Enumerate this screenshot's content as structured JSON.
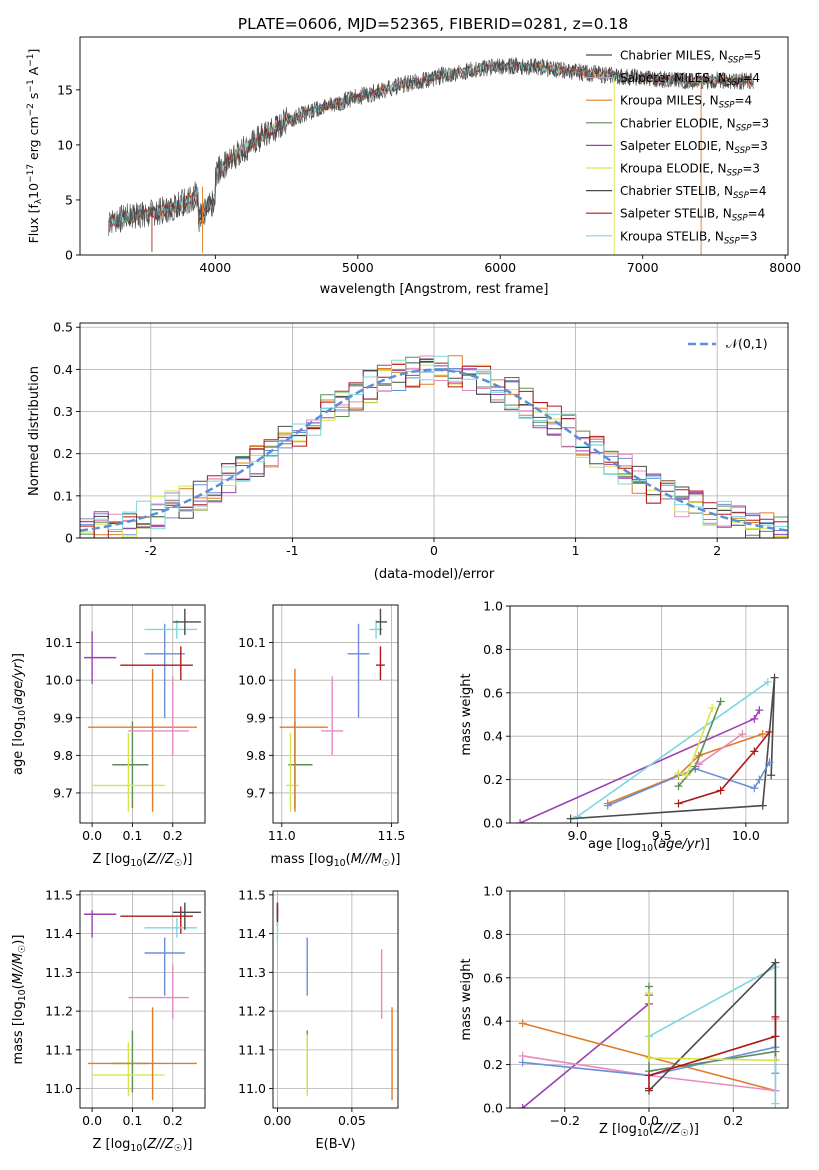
{
  "title": "PLATE=0606, MJD=52365, FIBERID=0281, z=0.18",
  "colors": {
    "blue": "#6a8fd8",
    "orange": "#e07b28",
    "green": "#5d8c56",
    "pink": "#e88ac0",
    "purple": "#9b3fb5",
    "yellow": "#d6e64a",
    "gray": "#4a4a4a",
    "red": "#b01818",
    "cyan": "#7ed6de"
  },
  "chart_data": [
    {
      "id": "spectrum",
      "type": "line",
      "xlabel": "wavelength [Angstrom, rest frame]",
      "ylabel": "Flux [f_λ10^-17 erg cm^-2 s^-1 A^-1]",
      "xlim": [
        3050,
        8020
      ],
      "ylim": [
        0,
        19.8
      ],
      "xticks": [
        4000,
        5000,
        6000,
        7000,
        8000
      ],
      "yticks": [
        0,
        5,
        10,
        15
      ],
      "legend": "top-right",
      "continuum": {
        "x": [
          3250,
          3400,
          3550,
          3700,
          3850,
          3950,
          4050,
          4150,
          4300,
          4500,
          4700,
          4900,
          5100,
          5300,
          5500,
          5700,
          5900,
          6100,
          6300,
          6500,
          6700,
          6900,
          7100,
          7300,
          7500,
          7700,
          7780
        ],
        "y": [
          3.0,
          3.5,
          3.8,
          4.3,
          5.3,
          6.8,
          8.0,
          9.2,
          10.5,
          12.2,
          13.2,
          14.0,
          14.7,
          15.4,
          16.0,
          16.6,
          17.0,
          17.2,
          17.0,
          16.7,
          16.4,
          16.2,
          16.0,
          15.8,
          15.9,
          15.8,
          15.8
        ]
      },
      "series": [
        {
          "name": "Chabrier MILES, N_SSP=5",
          "color": "gray"
        },
        {
          "name": "Salpeter MILES, N_SSP=4",
          "color": "pink"
        },
        {
          "name": "Kroupa MILES, N_SSP=4",
          "color": "orange"
        },
        {
          "name": "Chabrier ELODIE, N_SSP=3",
          "color": "green"
        },
        {
          "name": "Salpeter ELODIE, N_SSP=3",
          "color": "purple"
        },
        {
          "name": "Kroupa ELODIE, N_SSP=3",
          "color": "yellow"
        },
        {
          "name": "Chabrier STELIB, N_SSP=4",
          "color": "gray"
        },
        {
          "name": "Salpeter STELIB, N_SSP=4",
          "color": "red"
        },
        {
          "name": "Kroupa STELIB, N_SSP=3",
          "color": "cyan"
        }
      ]
    },
    {
      "id": "residuals",
      "type": "line",
      "xlabel": "(data-model)/error",
      "ylabel": "Normed distribution",
      "xlim": [
        -2.5,
        2.5
      ],
      "ylim": [
        0,
        0.51
      ],
      "xticks": [
        -2,
        -1,
        0,
        1,
        2
      ],
      "yticks": [
        0.0,
        0.1,
        0.2,
        0.3,
        0.4,
        0.5
      ],
      "grid": true,
      "legend": "top-right",
      "legend_label": "𝒩(0,1)",
      "bin_width": 0.1
    },
    {
      "id": "z-age",
      "type": "scatter",
      "xlabel": "Z [log10(Z/Z☉)]",
      "ylabel": "age  [log10(age/yr)]",
      "xlim": [
        -0.03,
        0.28
      ],
      "ylim": [
        9.62,
        10.2
      ],
      "xticks": [
        0.0,
        0.1,
        0.2
      ],
      "xticklabels": [
        "0.0",
        "0.1",
        "0.2"
      ],
      "yticks": [
        9.7,
        9.8,
        9.9,
        10.0,
        10.1
      ],
      "yticklabels": [
        "9.7",
        "9.8",
        "9.9",
        "10.0",
        "10.1"
      ],
      "grid": true,
      "points": [
        {
          "x": 0.0,
          "xerr": 0.0,
          "y": 10.06,
          "yerr": 0.07,
          "color": "purple",
          "xl": -0.02,
          "xr": 0.06
        },
        {
          "x": 0.1,
          "y": 9.775,
          "color": "green",
          "xl": 0.05,
          "xr": 0.14,
          "yb": 9.66,
          "yt": 9.89
        },
        {
          "x": 0.09,
          "y": 9.72,
          "color": "yellow",
          "xl": 0.0,
          "xr": 0.18,
          "yb": 9.65,
          "yt": 9.86
        },
        {
          "x": 0.15,
          "y": 9.875,
          "color": "orange",
          "xl": -0.01,
          "xr": 0.26,
          "yb": 9.65,
          "yt": 10.03
        },
        {
          "x": 0.2,
          "y": 9.865,
          "color": "pink",
          "xl": 0.09,
          "xr": 0.24,
          "yb": 9.8,
          "yt": 10.01
        },
        {
          "x": 0.18,
          "y": 10.07,
          "color": "blue",
          "xl": 0.13,
          "xr": 0.23,
          "yb": 9.9,
          "yt": 10.15
        },
        {
          "x": 0.22,
          "y": 10.04,
          "color": "red",
          "xl": 0.07,
          "xr": 0.25,
          "yb": 10.0,
          "yt": 10.09
        },
        {
          "x": 0.21,
          "y": 10.135,
          "color": "cyan",
          "xl": 0.13,
          "xr": 0.26,
          "yb": 10.11,
          "yt": 10.16
        },
        {
          "x": 0.23,
          "y": 10.155,
          "color": "gray",
          "xl": 0.2,
          "xr": 0.27,
          "yb": 10.12,
          "yt": 10.19
        }
      ]
    },
    {
      "id": "mass-age",
      "type": "scatter",
      "xlabel": "mass [log10(M/M☉)]",
      "ylabel": "",
      "xlim": [
        10.96,
        11.53
      ],
      "ylim": [
        9.62,
        10.2
      ],
      "xticks": [
        11.0,
        11.5
      ],
      "xticklabels": [
        "11.0",
        "11.5"
      ],
      "yticks": [
        9.7,
        9.8,
        9.9,
        10.0,
        10.1
      ],
      "yticklabels": [
        "9.7",
        "9.8",
        "9.9",
        "10.0",
        "10.1"
      ],
      "grid": true,
      "points": [
        {
          "x": 11.06,
          "y": 9.775,
          "color": "green",
          "xl": 11.03,
          "xr": 11.14,
          "yb": 9.66,
          "yt": 9.89
        },
        {
          "x": 11.04,
          "y": 9.72,
          "color": "yellow",
          "xl": 11.02,
          "xr": 11.08,
          "yb": 9.65,
          "yt": 9.86
        },
        {
          "x": 11.06,
          "y": 9.875,
          "color": "orange",
          "xl": 10.99,
          "xr": 11.21,
          "yb": 9.65,
          "yt": 10.03
        },
        {
          "x": 11.23,
          "y": 9.865,
          "color": "pink",
          "xl": 11.18,
          "xr": 11.28,
          "yb": 9.8,
          "yt": 10.01
        },
        {
          "x": 11.35,
          "y": 10.07,
          "color": "blue",
          "xl": 11.3,
          "xr": 11.4,
          "yb": 9.9,
          "yt": 10.15
        },
        {
          "x": 11.45,
          "y": 10.04,
          "color": "red",
          "xl": 11.43,
          "xr": 11.47,
          "yb": 10.0,
          "yt": 10.09
        },
        {
          "x": 11.43,
          "y": 10.135,
          "color": "cyan",
          "xl": 11.4,
          "xr": 11.46,
          "yb": 10.11,
          "yt": 10.16
        },
        {
          "x": 11.45,
          "y": 10.155,
          "color": "gray",
          "xl": 11.43,
          "xr": 11.48,
          "yb": 10.12,
          "yt": 10.19
        }
      ]
    },
    {
      "id": "age-massweight",
      "type": "line",
      "xlabel": "age  [log10(age/yr)]",
      "ylabel": "mass weight",
      "xlim": [
        8.6,
        10.25
      ],
      "ylim": [
        0,
        1.0
      ],
      "xticks": [
        9.0,
        9.5,
        10.0
      ],
      "xticklabels": [
        "9.0",
        "9.5",
        "10.0"
      ],
      "yticks": [
        0.0,
        0.2,
        0.4,
        0.6,
        0.8,
        1.0
      ],
      "yticklabels": [
        "0.0",
        "0.2",
        "0.4",
        "0.6",
        "0.8",
        "1.0"
      ],
      "grid": true,
      "series": [
        {
          "color": "purple",
          "x": [
            8.66,
            10.05,
            10.08
          ],
          "y": [
            0.0,
            0.48,
            0.52
          ]
        },
        {
          "color": "cyan",
          "x": [
            9.0,
            10.13
          ],
          "y": [
            0.03,
            0.65
          ]
        },
        {
          "color": "gray",
          "x": [
            8.96,
            10.1,
            10.17,
            10.15
          ],
          "y": [
            0.02,
            0.08,
            0.67,
            0.22
          ]
        },
        {
          "color": "orange",
          "x": [
            9.18,
            9.6,
            9.72,
            10.1
          ],
          "y": [
            0.09,
            0.22,
            0.31,
            0.41
          ]
        },
        {
          "color": "blue",
          "x": [
            9.18,
            9.7,
            10.05,
            10.08,
            10.14
          ],
          "y": [
            0.08,
            0.25,
            0.16,
            0.2,
            0.28
          ]
        },
        {
          "color": "red",
          "x": [
            9.6,
            9.85,
            10.05,
            10.14
          ],
          "y": [
            0.09,
            0.15,
            0.33,
            0.42
          ]
        },
        {
          "color": "green",
          "x": [
            9.6,
            9.7,
            9.85
          ],
          "y": [
            0.17,
            0.26,
            0.56
          ]
        },
        {
          "color": "yellow",
          "x": [
            9.6,
            9.65,
            9.8
          ],
          "y": [
            0.23,
            0.22,
            0.53
          ]
        },
        {
          "color": "pink",
          "x": [
            9.72,
            9.98
          ],
          "y": [
            0.27,
            0.41
          ]
        }
      ]
    },
    {
      "id": "z-mass",
      "type": "scatter",
      "xlabel": "Z [log10(Z/Z☉)]",
      "ylabel": "mass [log10(M/M☉)]",
      "xlim": [
        -0.03,
        0.28
      ],
      "ylim": [
        10.95,
        11.51
      ],
      "xticks": [
        0.0,
        0.1,
        0.2
      ],
      "xticklabels": [
        "0.0",
        "0.1",
        "0.2"
      ],
      "yticks": [
        11.0,
        11.1,
        11.2,
        11.3,
        11.4,
        11.5
      ],
      "yticklabels": [
        "11.0",
        "11.1",
        "11.2",
        "11.3",
        "11.4",
        "11.5"
      ],
      "grid": true,
      "points": [
        {
          "x": 0.0,
          "y": 11.45,
          "color": "purple",
          "xl": -0.02,
          "xr": 0.06,
          "yb": 11.39,
          "yt": 11.46
        },
        {
          "x": 0.1,
          "y": 11.065,
          "color": "green",
          "xl": 0.05,
          "xr": 0.14,
          "yb": 10.99,
          "yt": 11.15
        },
        {
          "x": 0.09,
          "y": 11.035,
          "color": "yellow",
          "xl": 0.0,
          "xr": 0.18,
          "yb": 10.98,
          "yt": 11.12
        },
        {
          "x": 0.15,
          "y": 11.065,
          "color": "orange",
          "xl": -0.01,
          "xr": 0.26,
          "yb": 10.97,
          "yt": 11.21
        },
        {
          "x": 0.2,
          "y": 11.235,
          "color": "pink",
          "xl": 0.09,
          "xr": 0.24,
          "yb": 11.18,
          "yt": 11.32
        },
        {
          "x": 0.18,
          "y": 11.35,
          "color": "blue",
          "xl": 0.13,
          "xr": 0.23,
          "yb": 11.24,
          "yt": 11.39
        },
        {
          "x": 0.22,
          "y": 11.445,
          "color": "red",
          "xl": 0.07,
          "xr": 0.25,
          "yb": 11.4,
          "yt": 11.47
        },
        {
          "x": 0.21,
          "y": 11.415,
          "color": "cyan",
          "xl": 0.13,
          "xr": 0.26,
          "yb": 11.39,
          "yt": 11.44
        },
        {
          "x": 0.23,
          "y": 11.455,
          "color": "gray",
          "xl": 0.2,
          "xr": 0.27,
          "yb": 11.41,
          "yt": 11.48
        }
      ]
    },
    {
      "id": "ebv-mass",
      "type": "scatter",
      "xlabel": "E(B-V)",
      "ylabel": "",
      "xlim": [
        -0.003,
        0.081
      ],
      "ylim": [
        10.95,
        11.51
      ],
      "xticks": [
        0.0,
        0.05
      ],
      "xticklabels": [
        "0.00",
        "0.05"
      ],
      "yticks": [
        11.0,
        11.1,
        11.2,
        11.3,
        11.4,
        11.5
      ],
      "yticklabels": [
        "11.0",
        "11.1",
        "11.2",
        "11.3",
        "11.4",
        "11.5"
      ],
      "grid": true,
      "points": [
        {
          "x": 0.0,
          "y": 11.45,
          "color": "purple",
          "yb": 11.42,
          "yt": 11.48
        },
        {
          "x": 0.0,
          "y": 11.41,
          "color": "cyan",
          "yb": 11.38,
          "yt": 11.44
        },
        {
          "x": 0.0,
          "y": 11.46,
          "color": "red",
          "yb": 11.43,
          "yt": 11.48
        },
        {
          "x": 0.0,
          "y": 11.455,
          "color": "gray",
          "yb": 11.44,
          "yt": 11.47
        },
        {
          "x": 0.02,
          "y": 11.32,
          "color": "blue",
          "yb": 11.24,
          "yt": 11.39
        },
        {
          "x": 0.02,
          "y": 11.065,
          "color": "green",
          "yb": 10.99,
          "yt": 11.15
        },
        {
          "x": 0.02,
          "y": 11.04,
          "color": "yellow",
          "yb": 10.98,
          "yt": 11.14
        },
        {
          "x": 0.07,
          "y": 11.27,
          "color": "pink",
          "yb": 11.18,
          "yt": 11.36
        },
        {
          "x": 0.077,
          "y": 11.09,
          "color": "orange",
          "yb": 10.97,
          "yt": 11.21
        }
      ]
    },
    {
      "id": "z-massweight",
      "type": "line",
      "xlabel": "Z [log10(Z/Z☉)]",
      "ylabel": "mass weight",
      "xlim": [
        -0.33,
        0.33
      ],
      "ylim": [
        0,
        1.0
      ],
      "xticks": [
        -0.2,
        0.0,
        0.2
      ],
      "xticklabels": [
        "−0.2",
        "0.0",
        "0.2"
      ],
      "yticks": [
        0.0,
        0.2,
        0.4,
        0.6,
        0.8,
        1.0
      ],
      "yticklabels": [
        "0.0",
        "0.2",
        "0.4",
        "0.6",
        "0.8",
        "1.0"
      ],
      "grid": true,
      "series": [
        {
          "color": "purple",
          "x": [
            -0.3,
            0.0,
            0.0
          ],
          "y": [
            0.0,
            0.48,
            0.52
          ]
        },
        {
          "color": "orange",
          "x": [
            -0.3,
            0.3
          ],
          "y": [
            0.39,
            0.08
          ]
        },
        {
          "color": "pink",
          "x": [
            -0.3,
            0.0,
            0.3,
            0.3
          ],
          "y": [
            0.24,
            0.15,
            0.08,
            0.41
          ]
        },
        {
          "color": "blue",
          "x": [
            -0.3,
            0.0,
            0.3,
            0.3
          ],
          "y": [
            0.21,
            0.15,
            0.28,
            0.16
          ]
        },
        {
          "color": "cyan",
          "x": [
            0.0,
            0.3,
            0.3
          ],
          "y": [
            0.33,
            0.65,
            0.02
          ]
        },
        {
          "color": "gray",
          "x": [
            0.0,
            0.3,
            0.3
          ],
          "y": [
            0.08,
            0.67,
            0.22
          ]
        },
        {
          "color": "green",
          "x": [
            0.0,
            0.0,
            0.3
          ],
          "y": [
            0.56,
            0.17,
            0.26
          ]
        },
        {
          "color": "yellow",
          "x": [
            0.0,
            0.0,
            0.3
          ],
          "y": [
            0.53,
            0.23,
            0.22
          ]
        },
        {
          "color": "red",
          "x": [
            0.0,
            0.0,
            0.3,
            0.3
          ],
          "y": [
            0.09,
            0.15,
            0.33,
            0.42
          ]
        }
      ]
    }
  ]
}
